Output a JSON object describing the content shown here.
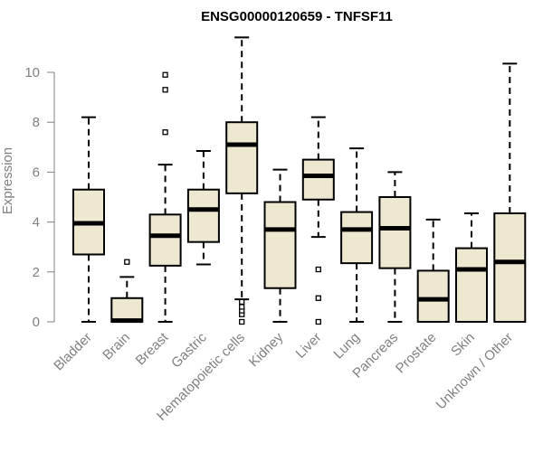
{
  "chart_data": {
    "type": "box",
    "title": "ENSG00000120659 - TNFSF11",
    "xlabel": "",
    "ylabel": "Expression",
    "ylim": [
      0,
      11.5
    ],
    "yticks": [
      0,
      2,
      4,
      6,
      8,
      10
    ],
    "box_fill": "#EEE8D0",
    "categories": [
      "Bladder",
      "Brain",
      "Breast",
      "Gastric",
      "Hematopoietic cells",
      "Kidney",
      "Liver",
      "Lung",
      "Pancreas",
      "Prostate",
      "Skin",
      "Unknown / Other"
    ],
    "boxes": [
      {
        "min": 0,
        "q1": 2.7,
        "median": 3.95,
        "q3": 5.3,
        "max": 8.2,
        "outliers": []
      },
      {
        "min": 0,
        "q1": 0,
        "median": 0.05,
        "q3": 0.95,
        "max": 1.8,
        "outliers": [
          2.4
        ]
      },
      {
        "min": 0,
        "q1": 2.25,
        "median": 3.45,
        "q3": 4.3,
        "max": 6.3,
        "outliers": [
          7.6,
          9.3,
          9.9
        ]
      },
      {
        "min": 2.3,
        "q1": 3.2,
        "median": 4.5,
        "q3": 5.3,
        "max": 6.85,
        "outliers": []
      },
      {
        "min": 0.9,
        "q1": 5.15,
        "median": 7.1,
        "q3": 8.0,
        "max": 11.4,
        "outliers": [
          0,
          0.3,
          0.45,
          0.6,
          0.8
        ]
      },
      {
        "min": 0,
        "q1": 1.35,
        "median": 3.7,
        "q3": 4.8,
        "max": 6.1,
        "outliers": []
      },
      {
        "min": 3.4,
        "q1": 4.9,
        "median": 5.85,
        "q3": 6.5,
        "max": 8.2,
        "outliers": [
          0,
          0.95,
          2.1
        ]
      },
      {
        "min": 0,
        "q1": 2.35,
        "median": 3.7,
        "q3": 4.4,
        "max": 6.95,
        "outliers": []
      },
      {
        "min": 0,
        "q1": 2.15,
        "median": 3.75,
        "q3": 5.0,
        "max": 6.0,
        "outliers": []
      },
      {
        "min": 0,
        "q1": 0,
        "median": 0.9,
        "q3": 2.05,
        "max": 4.1,
        "outliers": []
      },
      {
        "min": 0,
        "q1": 0,
        "median": 2.1,
        "q3": 2.95,
        "max": 4.35,
        "outliers": []
      },
      {
        "min": 0,
        "q1": 0,
        "median": 2.4,
        "q3": 4.35,
        "max": 10.35,
        "outliers": []
      }
    ]
  }
}
